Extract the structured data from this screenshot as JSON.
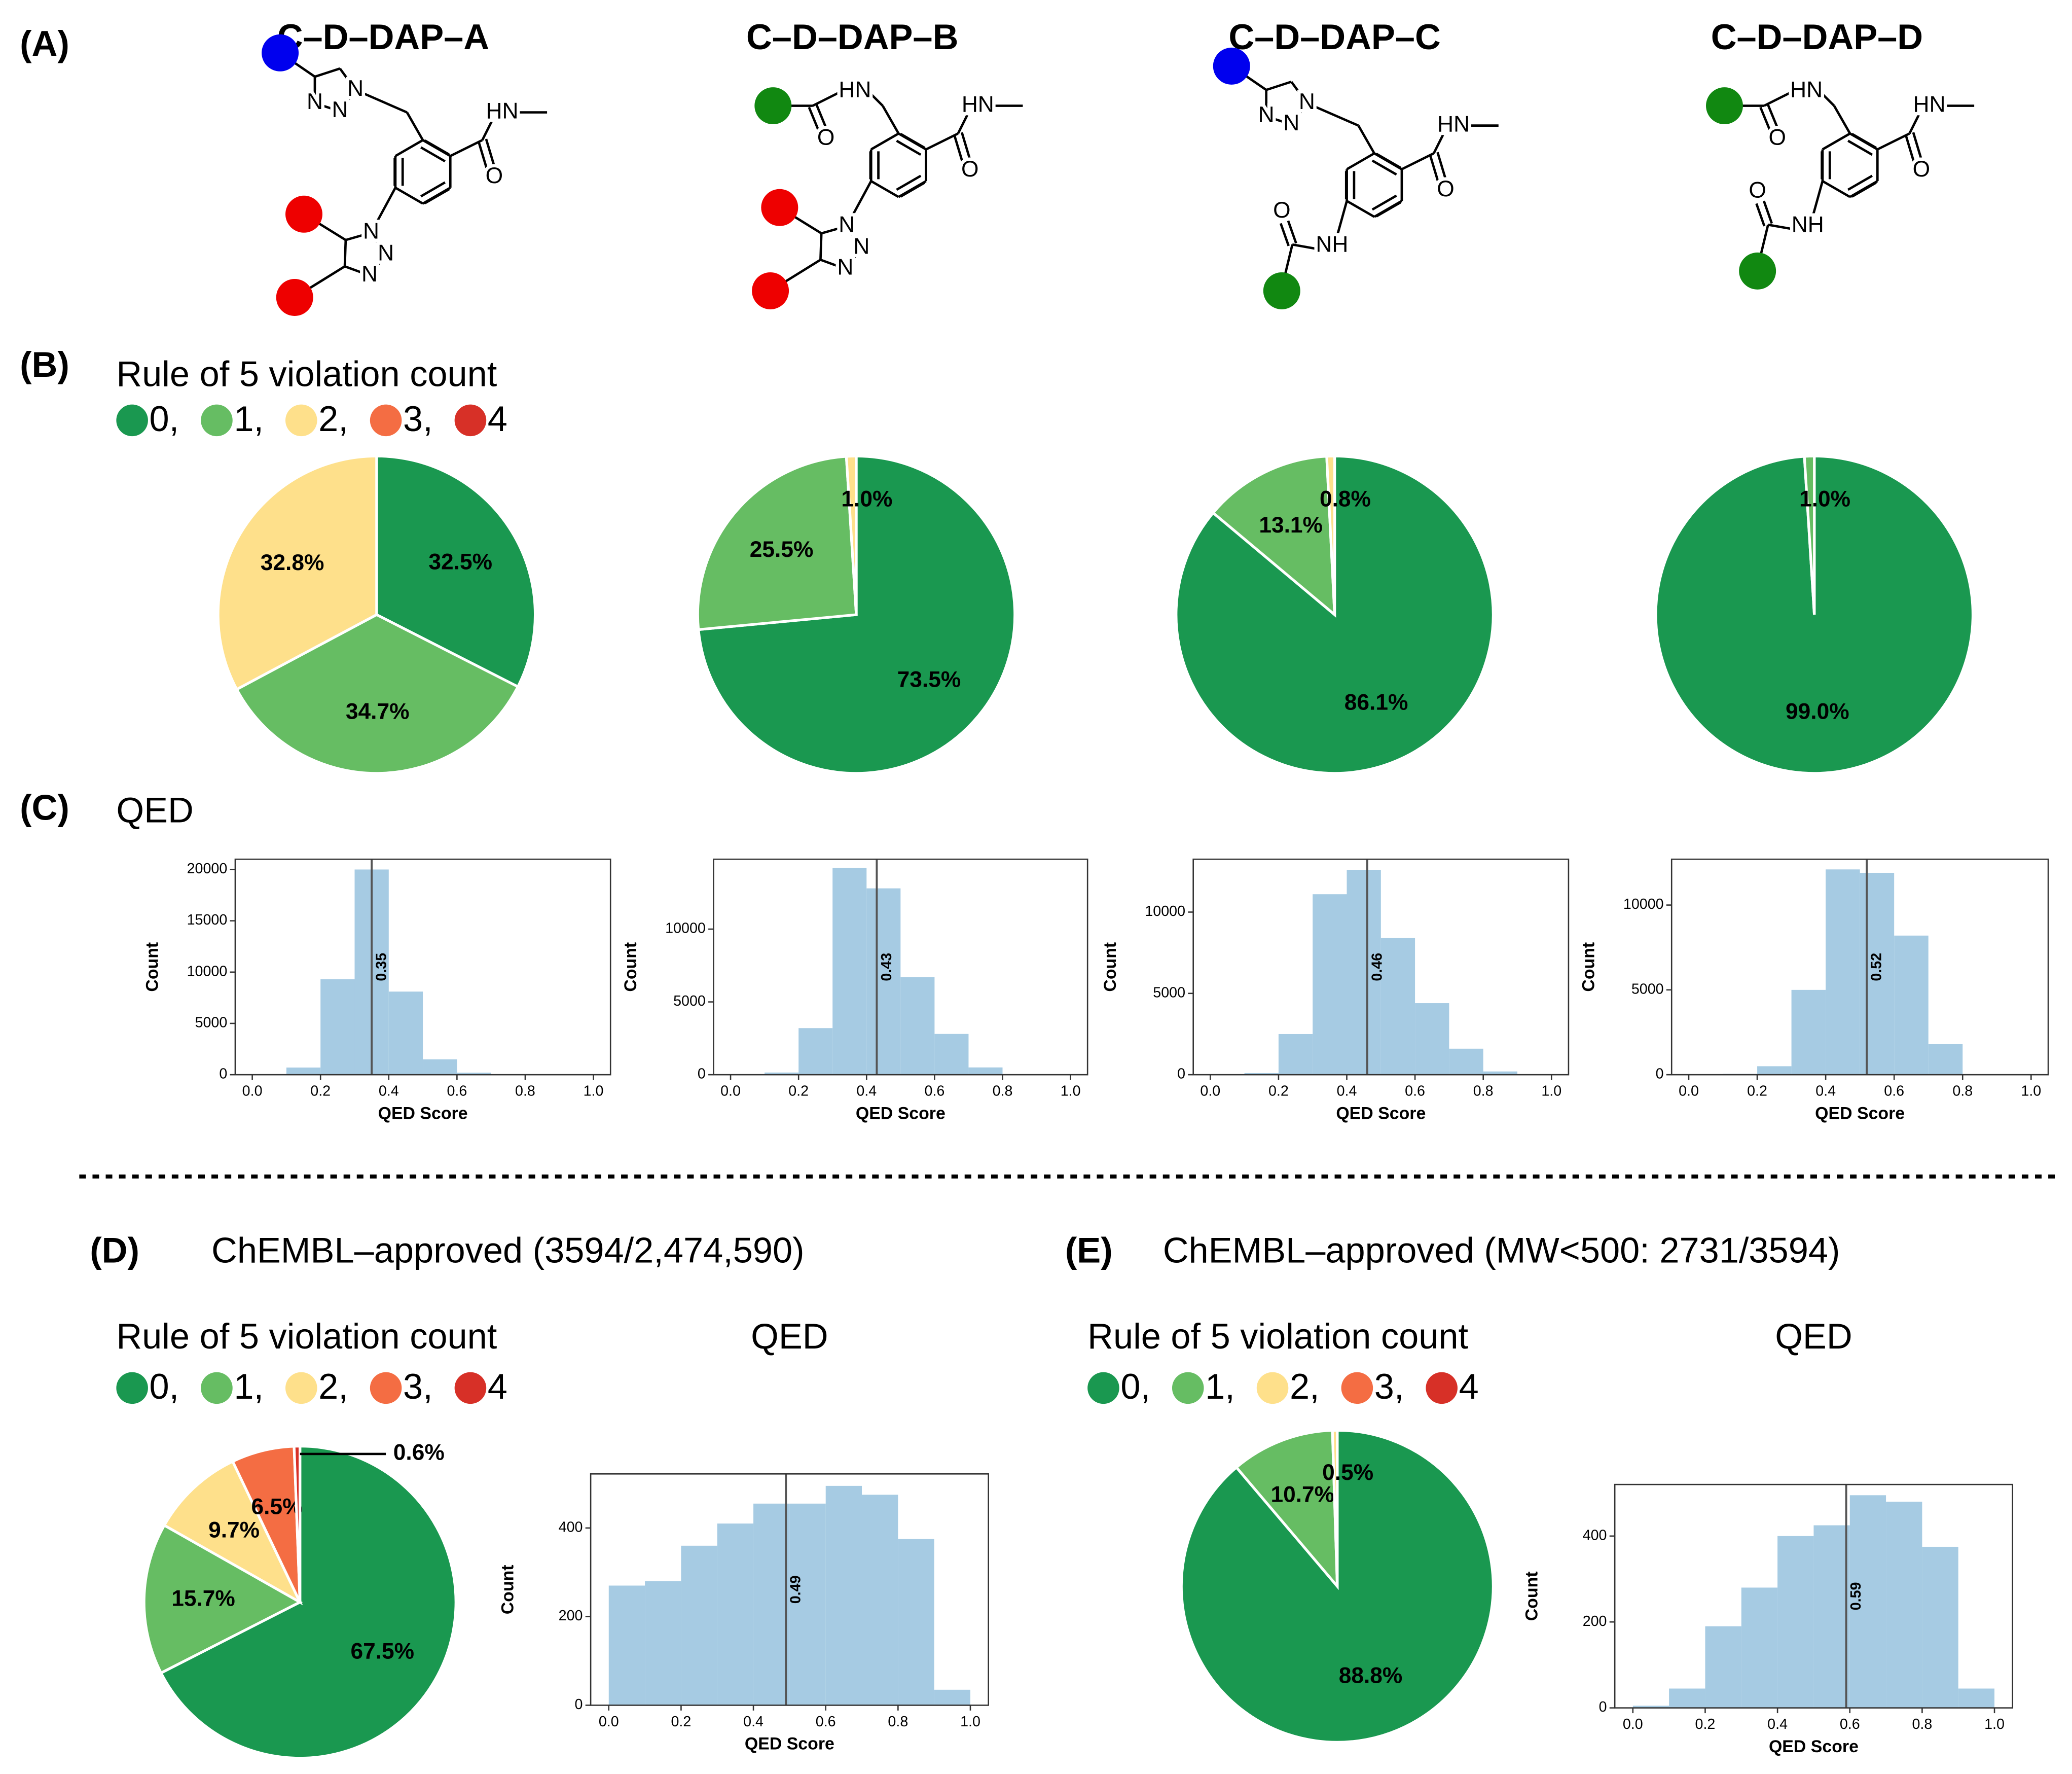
{
  "panel_labels": [
    "(A)",
    "(B)",
    "(C)",
    "(D)",
    "(E)"
  ],
  "molecules": [
    {
      "name": "C–D–DAP–A",
      "atoms": [
        "N",
        "N",
        "N",
        "HN",
        "O",
        "N",
        "N",
        "N"
      ]
    },
    {
      "name": "C–D–DAP–B",
      "atoms": [
        "HN",
        "O",
        "HN",
        "O",
        "N",
        "N",
        "N"
      ]
    },
    {
      "name": "C–D–DAP–C",
      "atoms": [
        "N",
        "N",
        "N",
        "HN",
        "O",
        "O",
        "NH"
      ]
    },
    {
      "name": "C–D–DAP–D",
      "atoms": [
        "HN",
        "O",
        "HN",
        "O",
        "O",
        "NH"
      ]
    }
  ],
  "legends": [
    {
      "title": "Rule of 5 violation count",
      "entries": [
        "0,",
        "1,",
        "2,",
        "3,",
        "4"
      ],
      "colors": [
        "#1a9850",
        "#66bd63",
        "#fee08b",
        "#f46d43",
        "#d73027"
      ]
    },
    {
      "title": "Rule of 5 violation count",
      "entries": [
        "0,",
        "1,",
        "2,",
        "3,",
        "4"
      ],
      "colors": [
        "#1a9850",
        "#66bd63",
        "#fee08b",
        "#f46d43",
        "#d73027"
      ]
    },
    {
      "title": "Rule of 5 violation count",
      "entries": [
        "0,",
        "1,",
        "2,",
        "3,",
        "4"
      ],
      "colors": [
        "#1a9850",
        "#66bd63",
        "#fee08b",
        "#f46d43",
        "#d73027"
      ]
    }
  ],
  "qed_heading": "QED",
  "panel_titles": [
    "ChEMBL–approved (3594/2,474,590)",
    "ChEMBL–approved (MW<500: 2731/3594)"
  ],
  "chart_data": [
    {
      "type": "pie",
      "values": [
        32.5,
        34.7,
        32.8
      ],
      "value_labels": [
        "32.5%",
        "34.7%",
        "32.8%"
      ],
      "colors": [
        "#1a9850",
        "#66bd63",
        "#fee08b"
      ]
    },
    {
      "type": "pie",
      "values": [
        73.5,
        25.5,
        1.0
      ],
      "value_labels": [
        "73.5%",
        "25.5%",
        "1.0%"
      ],
      "colors": [
        "#1a9850",
        "#66bd63",
        "#fee08b"
      ]
    },
    {
      "type": "pie",
      "values": [
        86.1,
        13.1,
        0.8
      ],
      "value_labels": [
        "86.1%",
        "13.1%",
        "0.8%"
      ],
      "colors": [
        "#1a9850",
        "#66bd63",
        "#fee08b"
      ]
    },
    {
      "type": "pie",
      "values": [
        99.0,
        1.0
      ],
      "value_labels": [
        "99.0%",
        "1.0%"
      ],
      "colors": [
        "#1a9850",
        "#66bd63"
      ]
    },
    {
      "type": "histogram",
      "bins": [
        0,
        0.1,
        0.2,
        0.3,
        0.4,
        0.5,
        0.6,
        0.7,
        0.8,
        0.9,
        1.0
      ],
      "counts": [
        0,
        700,
        9300,
        20000,
        8100,
        1500,
        200,
        20,
        0,
        0
      ],
      "color": "#a6cbe3",
      "median": 0.35,
      "xlabel": "QED Score",
      "ylabel": "Count",
      "xlim": [
        -0.05,
        1.05
      ],
      "ylim": [
        0,
        21000
      ],
      "xticks": [
        {
          "value": 0,
          "label": "0.0"
        },
        0.2,
        0.4,
        0.6,
        0.8,
        {
          "value": 1,
          "label": "1.0"
        }
      ],
      "yticks": [
        0,
        5000,
        10000,
        15000,
        20000
      ]
    },
    {
      "type": "histogram",
      "bins": [
        0,
        0.1,
        0.2,
        0.3,
        0.4,
        0.5,
        0.6,
        0.7,
        0.8,
        0.9,
        1.0
      ],
      "counts": [
        0,
        150,
        3200,
        14200,
        12800,
        6700,
        2800,
        500,
        20,
        0
      ],
      "color": "#a6cbe3",
      "median": 0.43,
      "xlabel": "QED Score",
      "ylabel": "Count",
      "xlim": [
        -0.05,
        1.05
      ],
      "ylim": [
        0,
        14800
      ],
      "xticks": [
        {
          "value": 0,
          "label": "0.0"
        },
        0.2,
        0.4,
        0.6,
        0.8,
        {
          "value": 1,
          "label": "1.0"
        }
      ],
      "yticks": [
        0,
        5000,
        10000
      ]
    },
    {
      "type": "histogram",
      "bins": [
        0,
        0.1,
        0.2,
        0.3,
        0.4,
        0.5,
        0.6,
        0.7,
        0.8,
        0.9,
        1.0
      ],
      "counts": [
        0,
        100,
        2500,
        11100,
        12600,
        8400,
        4400,
        1600,
        200,
        0
      ],
      "color": "#a6cbe3",
      "median": 0.46,
      "xlabel": "QED Score",
      "ylabel": "Count",
      "xlim": [
        -0.05,
        1.05
      ],
      "ylim": [
        0,
        13250
      ],
      "xticks": [
        {
          "value": 0,
          "label": "0.0"
        },
        0.2,
        0.4,
        0.6,
        0.8,
        {
          "value": 1,
          "label": "1.0"
        }
      ],
      "yticks": [
        0,
        5000,
        10000
      ]
    },
    {
      "type": "histogram",
      "bins": [
        0,
        0.1,
        0.2,
        0.3,
        0.4,
        0.5,
        0.6,
        0.7,
        0.8,
        0.9,
        1.0
      ],
      "counts": [
        0,
        50,
        500,
        5000,
        12100,
        11900,
        8200,
        1800,
        0,
        0
      ],
      "color": "#a6cbe3",
      "median": 0.52,
      "xlabel": "QED Score",
      "ylabel": "Count",
      "xlim": [
        -0.05,
        1.05
      ],
      "ylim": [
        0,
        12700
      ],
      "xticks": [
        {
          "value": 0,
          "label": "0.0"
        },
        0.2,
        0.4,
        0.6,
        0.8,
        {
          "value": 1,
          "label": "1.0"
        }
      ],
      "yticks": [
        0,
        5000,
        10000
      ]
    },
    {
      "type": "pie",
      "values": [
        67.5,
        15.7,
        9.7,
        6.5,
        0.6
      ],
      "value_labels": [
        "67.5%",
        "15.7%",
        "9.7%",
        "6.5%",
        "0.6%"
      ],
      "colors": [
        "#1a9850",
        "#66bd63",
        "#fee08b",
        "#f46d43",
        "#d73027"
      ]
    },
    {
      "type": "histogram",
      "title": "QED",
      "bins": [
        0,
        0.1,
        0.2,
        0.3,
        0.4,
        0.5,
        0.6,
        0.7,
        0.8,
        0.9,
        1.0
      ],
      "counts": [
        270,
        280,
        360,
        410,
        455,
        455,
        495,
        475,
        375,
        35
      ],
      "color": "#a6cbe3",
      "median": 0.49,
      "xlabel": "QED Score",
      "ylabel": "Count",
      "xlim": [
        -0.05,
        1.05
      ],
      "ylim": [
        0,
        522
      ],
      "xticks": [
        {
          "value": 0,
          "label": "0.0"
        },
        0.2,
        0.4,
        0.6,
        0.8,
        {
          "value": 1,
          "label": "1.0"
        }
      ],
      "yticks": [
        0,
        200,
        400
      ]
    },
    {
      "type": "pie",
      "values": [
        88.8,
        10.7,
        0.5
      ],
      "value_labels": [
        "88.8%",
        "10.7%",
        "0.5%"
      ],
      "colors": [
        "#1a9850",
        "#66bd63",
        "#fee08b"
      ]
    },
    {
      "type": "histogram",
      "title": "QED",
      "bins": [
        0,
        0.1,
        0.2,
        0.3,
        0.4,
        0.5,
        0.6,
        0.7,
        0.8,
        0.9,
        1.0
      ],
      "counts": [
        5,
        45,
        190,
        280,
        400,
        425,
        495,
        480,
        375,
        45
      ],
      "color": "#a6cbe3",
      "median": 0.59,
      "xlabel": "QED Score",
      "ylabel": "Count",
      "xlim": [
        -0.05,
        1.05
      ],
      "ylim": [
        0,
        520
      ],
      "xticks": [
        {
          "value": 0,
          "label": "0.0"
        },
        0.2,
        0.4,
        0.6,
        0.8,
        {
          "value": 1,
          "label": "1.0"
        }
      ],
      "yticks": [
        0,
        200,
        400
      ]
    }
  ]
}
